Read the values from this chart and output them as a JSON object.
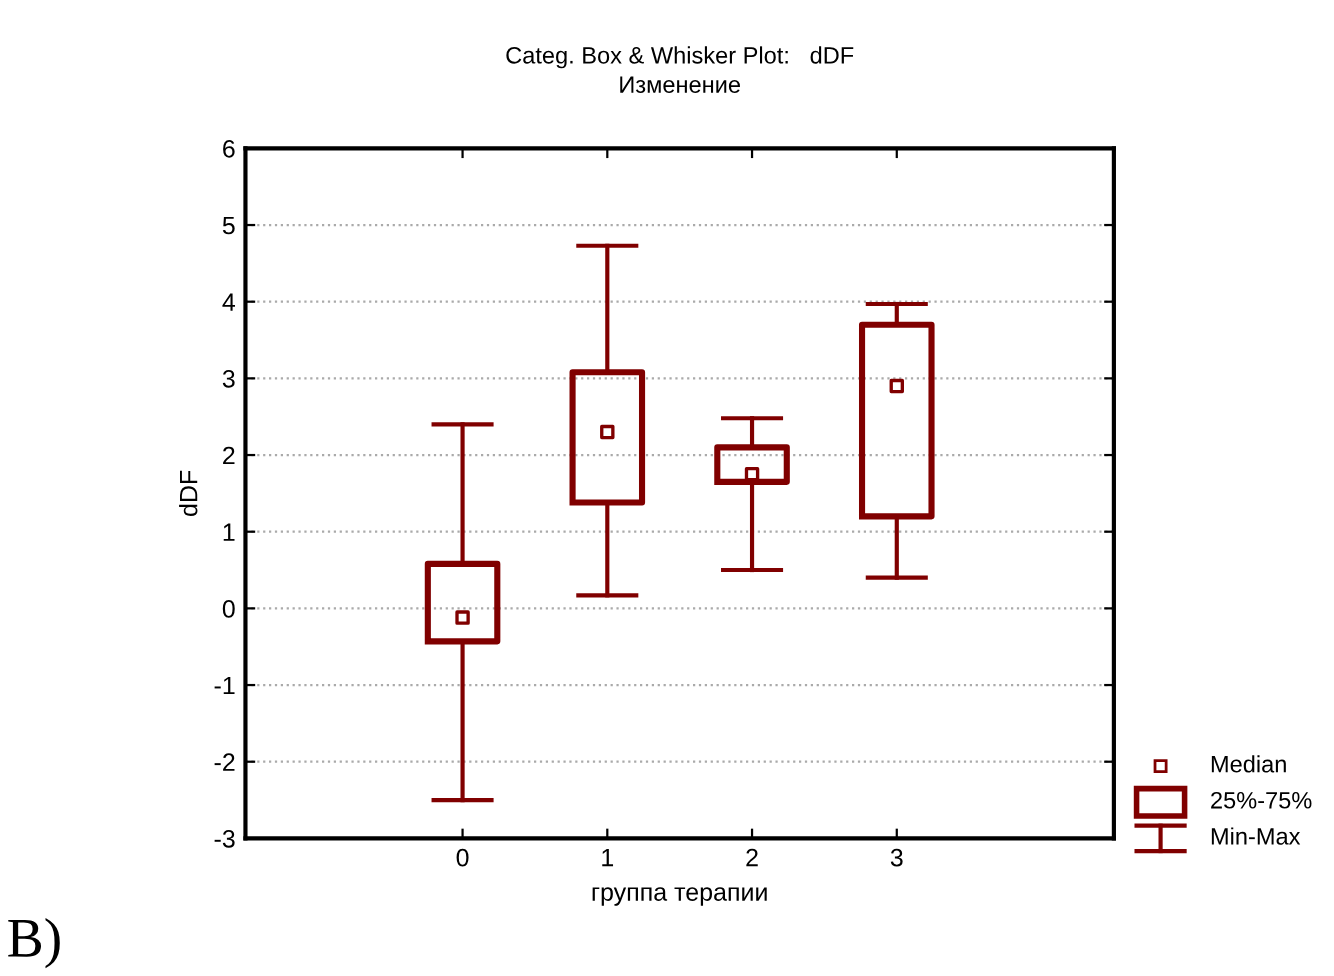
{
  "chart_data": {
    "type": "box",
    "title": "Categ. Box & Whisker Plot:   dDF",
    "subtitle": "Изменение",
    "xlabel": "группа терапии",
    "ylabel": "dDF",
    "categories": [
      "0",
      "1",
      "2",
      "3"
    ],
    "boxes": [
      {
        "low": -2.5,
        "q1": -0.43,
        "median": -0.12,
        "q3": 0.58,
        "high": 2.4
      },
      {
        "low": 0.17,
        "q1": 1.38,
        "median": 2.3,
        "q3": 3.08,
        "high": 4.73
      },
      {
        "low": 0.5,
        "q1": 1.65,
        "median": 1.75,
        "q3": 2.1,
        "high": 2.48
      },
      {
        "low": 0.4,
        "q1": 1.2,
        "median": 2.9,
        "q3": 3.7,
        "high": 3.97
      }
    ],
    "color": "#800000",
    "ylim": [
      -3,
      6
    ],
    "yticks": [
      -3,
      -2,
      -1,
      0,
      1,
      2,
      3,
      4,
      5,
      6
    ],
    "grid": "y",
    "annotations": [
      "Median",
      "25%-75%",
      "Min-Max",
      "B)"
    ]
  }
}
